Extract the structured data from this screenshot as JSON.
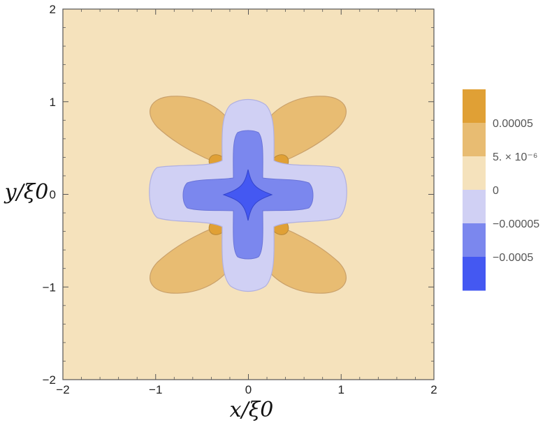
{
  "chart_data": {
    "type": "heatmap",
    "subtype": "contour",
    "xlabel": "x/ξ0",
    "ylabel": "y/ξ0",
    "xlim": [
      -2,
      2
    ],
    "ylim": [
      -2,
      2
    ],
    "x_ticks": [
      -2,
      -1,
      0,
      1,
      2
    ],
    "y_ticks": [
      -2,
      -1,
      0,
      1,
      2
    ],
    "x_tick_labels": [
      "−2",
      "−1",
      "0",
      "1",
      "2"
    ],
    "y_tick_labels": [
      "−2",
      "−1",
      "0",
      "1",
      "2"
    ],
    "grid": false,
    "legend_placement": "right",
    "contour_levels": [
      -0.0005,
      -5e-05,
      0,
      5e-06,
      5e-05
    ],
    "colorbar_labels": [
      "0.00005",
      "5. × 10⁻⁶",
      "0",
      "−0.00005",
      "−0.0005"
    ],
    "colorbar_colors": [
      "#e0a035",
      "#e8bc72",
      "#f5e2bc",
      "#d0d0f4",
      "#7b87ee",
      "#4458f2"
    ],
    "colors": {
      "background_band": "#f5e2bc",
      "lobe_positive": "#e8bc72",
      "lobe_peak": "#e0a035",
      "negative_light": "#d0d0f4",
      "negative_mid": "#7b87ee",
      "negative_deep": "#4458f2"
    }
  }
}
